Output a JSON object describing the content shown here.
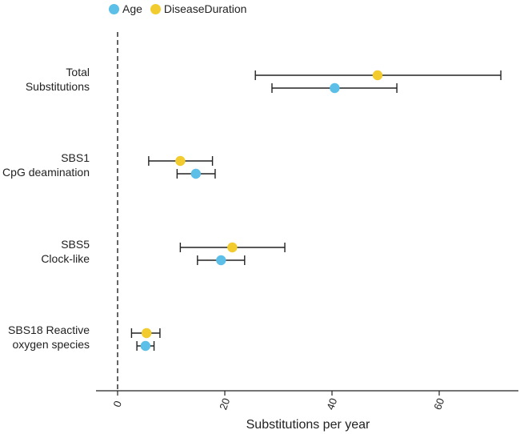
{
  "chart_data": {
    "type": "forest",
    "xlabel": "Substitutions per year",
    "x_ticks": [
      0,
      20,
      40,
      60
    ],
    "xlim": [
      -4,
      75
    ],
    "reference_line_x": 0,
    "legend_position": "top-left",
    "series": [
      {
        "name": "Age",
        "color": "#5bbfe8"
      },
      {
        "name": "DiseaseDuration",
        "color": "#f2cc2e"
      }
    ],
    "categories": [
      {
        "label_lines": [
          "Total",
          "Substitutions"
        ],
        "estimates": [
          {
            "series": "DiseaseDuration",
            "value": 48.5,
            "lower": 25.7,
            "upper": 71.5
          },
          {
            "series": "Age",
            "value": 40.5,
            "lower": 28.8,
            "upper": 52.1
          }
        ]
      },
      {
        "label_lines": [
          "SBS1",
          "CpG deamination"
        ],
        "estimates": [
          {
            "series": "DiseaseDuration",
            "value": 11.7,
            "lower": 5.8,
            "upper": 17.7
          },
          {
            "series": "Age",
            "value": 14.6,
            "lower": 11.1,
            "upper": 18.2
          }
        ]
      },
      {
        "label_lines": [
          "SBS5",
          "Clock-like"
        ],
        "estimates": [
          {
            "series": "DiseaseDuration",
            "value": 21.4,
            "lower": 11.7,
            "upper": 31.2
          },
          {
            "series": "Age",
            "value": 19.3,
            "lower": 14.9,
            "upper": 23.7
          }
        ]
      },
      {
        "label_lines": [
          "SBS18 Reactive",
          "oxygen species"
        ],
        "estimates": [
          {
            "series": "DiseaseDuration",
            "value": 5.4,
            "lower": 2.6,
            "upper": 7.9
          },
          {
            "series": "Age",
            "value": 5.2,
            "lower": 3.6,
            "upper": 6.8
          }
        ]
      }
    ]
  }
}
